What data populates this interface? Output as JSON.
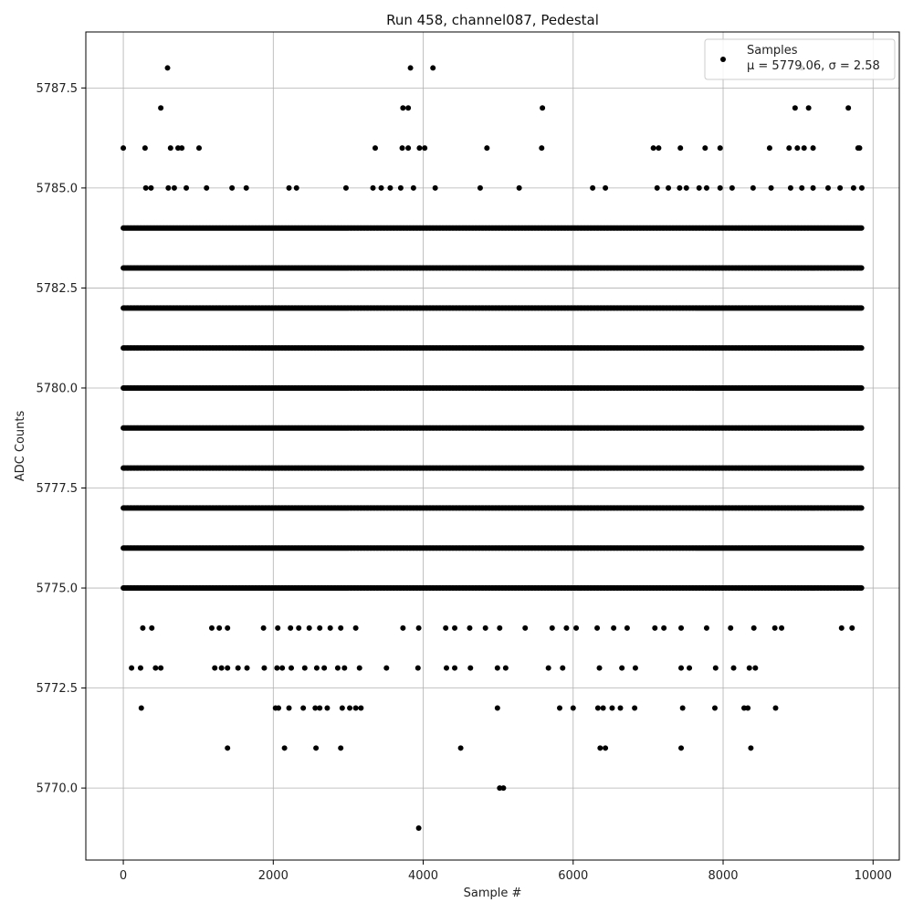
{
  "chart_data": {
    "type": "scatter",
    "title": "Run 458, channel087, Pedestal",
    "xlabel": "Sample #",
    "ylabel": "ADC Counts",
    "xlim": [
      -500,
      10350
    ],
    "ylim": [
      5768.2,
      5788.9
    ],
    "xticks": [
      0,
      2000,
      4000,
      6000,
      8000,
      10000
    ],
    "xtick_labels": [
      "0",
      "2000",
      "4000",
      "6000",
      "8000",
      "10000"
    ],
    "yticks": [
      5770.0,
      5772.5,
      5775.0,
      5777.5,
      5780.0,
      5782.5,
      5785.0,
      5787.5
    ],
    "ytick_labels": [
      "5770.0",
      "5772.5",
      "5775.0",
      "5777.5",
      "5780.0",
      "5782.5",
      "5785.0",
      "5787.5"
    ],
    "grid": true,
    "legend_position": "top-right",
    "marker_color": "#000000",
    "series": [
      {
        "name": "Samples",
        "stats_label": "μ = 5779.06, σ = 2.58",
        "points": [
          [
            0,
            5786
          ],
          [
            290,
            5786
          ],
          [
            630,
            5786
          ],
          [
            730,
            5786
          ],
          [
            780,
            5786
          ],
          [
            1010,
            5786
          ],
          [
            3360,
            5786
          ],
          [
            3720,
            5786
          ],
          [
            3800,
            5786
          ],
          [
            3950,
            5786
          ],
          [
            4020,
            5786
          ],
          [
            4850,
            5786
          ],
          [
            5580,
            5786
          ],
          [
            7070,
            5786
          ],
          [
            7140,
            5786
          ],
          [
            7430,
            5786
          ],
          [
            7760,
            5786
          ],
          [
            7960,
            5786
          ],
          [
            8620,
            5786
          ],
          [
            8880,
            5786
          ],
          [
            8990,
            5786
          ],
          [
            9080,
            5786
          ],
          [
            9200,
            5786
          ],
          [
            9800,
            5786
          ],
          [
            9820,
            5786
          ],
          [
            590,
            5788
          ],
          [
            3830,
            5788
          ],
          [
            4130,
            5788
          ],
          [
            9050,
            5788
          ],
          [
            500,
            5787
          ],
          [
            3730,
            5787
          ],
          [
            3800,
            5787
          ],
          [
            5590,
            5787
          ],
          [
            8960,
            5787
          ],
          [
            9140,
            5787
          ],
          [
            9670,
            5787
          ],
          [
            300,
            5785
          ],
          [
            370,
            5785
          ],
          [
            600,
            5785
          ],
          [
            680,
            5785
          ],
          [
            840,
            5785
          ],
          [
            1110,
            5785
          ],
          [
            1450,
            5785
          ],
          [
            1640,
            5785
          ],
          [
            2210,
            5785
          ],
          [
            2310,
            5785
          ],
          [
            2970,
            5785
          ],
          [
            3330,
            5785
          ],
          [
            3440,
            5785
          ],
          [
            3560,
            5785
          ],
          [
            3700,
            5785
          ],
          [
            3870,
            5785
          ],
          [
            4160,
            5785
          ],
          [
            4760,
            5785
          ],
          [
            5280,
            5785
          ],
          [
            6260,
            5785
          ],
          [
            6430,
            5785
          ],
          [
            7120,
            5785
          ],
          [
            7270,
            5785
          ],
          [
            7420,
            5785
          ],
          [
            7510,
            5785
          ],
          [
            7680,
            5785
          ],
          [
            7780,
            5785
          ],
          [
            7960,
            5785
          ],
          [
            8120,
            5785
          ],
          [
            8400,
            5785
          ],
          [
            8640,
            5785
          ],
          [
            8900,
            5785
          ],
          [
            9050,
            5785
          ],
          [
            9200,
            5785
          ],
          [
            9400,
            5785
          ],
          [
            9560,
            5785
          ],
          [
            9740,
            5785
          ],
          [
            9850,
            5785
          ],
          [
            1390,
            5771
          ],
          [
            2150,
            5771
          ],
          [
            2570,
            5771
          ],
          [
            2900,
            5771
          ],
          [
            4500,
            5771
          ],
          [
            6360,
            5771
          ],
          [
            6430,
            5771
          ],
          [
            7440,
            5771
          ],
          [
            8370,
            5771
          ],
          [
            5020,
            5770
          ],
          [
            5070,
            5770
          ],
          [
            3940,
            5769
          ],
          [
            240,
            5772
          ],
          [
            2030,
            5772
          ],
          [
            2070,
            5772
          ],
          [
            2210,
            5772
          ],
          [
            2400,
            5772
          ],
          [
            2560,
            5772
          ],
          [
            2620,
            5772
          ],
          [
            2720,
            5772
          ],
          [
            2920,
            5772
          ],
          [
            3020,
            5772
          ],
          [
            3100,
            5772
          ],
          [
            3170,
            5772
          ],
          [
            4990,
            5772
          ],
          [
            5820,
            5772
          ],
          [
            6000,
            5772
          ],
          [
            6330,
            5772
          ],
          [
            6400,
            5772
          ],
          [
            6520,
            5772
          ],
          [
            6630,
            5772
          ],
          [
            6820,
            5772
          ],
          [
            7460,
            5772
          ],
          [
            7890,
            5772
          ],
          [
            8280,
            5772
          ],
          [
            8330,
            5772
          ],
          [
            8700,
            5772
          ],
          [
            110,
            5773
          ],
          [
            230,
            5773
          ],
          [
            430,
            5773
          ],
          [
            500,
            5773
          ],
          [
            1220,
            5773
          ],
          [
            1310,
            5773
          ],
          [
            1390,
            5773
          ],
          [
            1530,
            5773
          ],
          [
            1650,
            5773
          ],
          [
            1880,
            5773
          ],
          [
            2050,
            5773
          ],
          [
            2120,
            5773
          ],
          [
            2240,
            5773
          ],
          [
            2420,
            5773
          ],
          [
            2580,
            5773
          ],
          [
            2680,
            5773
          ],
          [
            2860,
            5773
          ],
          [
            2950,
            5773
          ],
          [
            3150,
            5773
          ],
          [
            3510,
            5773
          ],
          [
            3930,
            5773
          ],
          [
            4310,
            5773
          ],
          [
            4420,
            5773
          ],
          [
            4630,
            5773
          ],
          [
            4990,
            5773
          ],
          [
            5100,
            5773
          ],
          [
            5670,
            5773
          ],
          [
            5860,
            5773
          ],
          [
            6350,
            5773
          ],
          [
            6650,
            5773
          ],
          [
            6830,
            5773
          ],
          [
            7440,
            5773
          ],
          [
            7550,
            5773
          ],
          [
            7900,
            5773
          ],
          [
            8140,
            5773
          ],
          [
            8350,
            5773
          ],
          [
            8430,
            5773
          ],
          [
            260,
            5774
          ],
          [
            380,
            5774
          ],
          [
            1180,
            5774
          ],
          [
            1280,
            5774
          ],
          [
            1390,
            5774
          ],
          [
            1870,
            5774
          ],
          [
            2060,
            5774
          ],
          [
            2230,
            5774
          ],
          [
            2340,
            5774
          ],
          [
            2480,
            5774
          ],
          [
            2620,
            5774
          ],
          [
            2760,
            5774
          ],
          [
            2900,
            5774
          ],
          [
            3100,
            5774
          ],
          [
            3730,
            5774
          ],
          [
            3940,
            5774
          ],
          [
            4300,
            5774
          ],
          [
            4420,
            5774
          ],
          [
            4620,
            5774
          ],
          [
            4830,
            5774
          ],
          [
            5020,
            5774
          ],
          [
            5360,
            5774
          ],
          [
            5720,
            5774
          ],
          [
            5910,
            5774
          ],
          [
            6040,
            5774
          ],
          [
            6320,
            5774
          ],
          [
            6540,
            5774
          ],
          [
            6720,
            5774
          ],
          [
            7090,
            5774
          ],
          [
            7210,
            5774
          ],
          [
            7440,
            5774
          ],
          [
            7780,
            5774
          ],
          [
            8100,
            5774
          ],
          [
            8410,
            5774
          ],
          [
            8690,
            5774
          ],
          [
            8780,
            5774
          ],
          [
            9580,
            5774
          ],
          [
            9720,
            5774
          ]
        ],
        "dense_levels": [
          5775,
          5776,
          5777,
          5778,
          5779,
          5780,
          5781,
          5782,
          5783,
          5784
        ],
        "dense_x_range": [
          0,
          9860
        ]
      }
    ]
  }
}
